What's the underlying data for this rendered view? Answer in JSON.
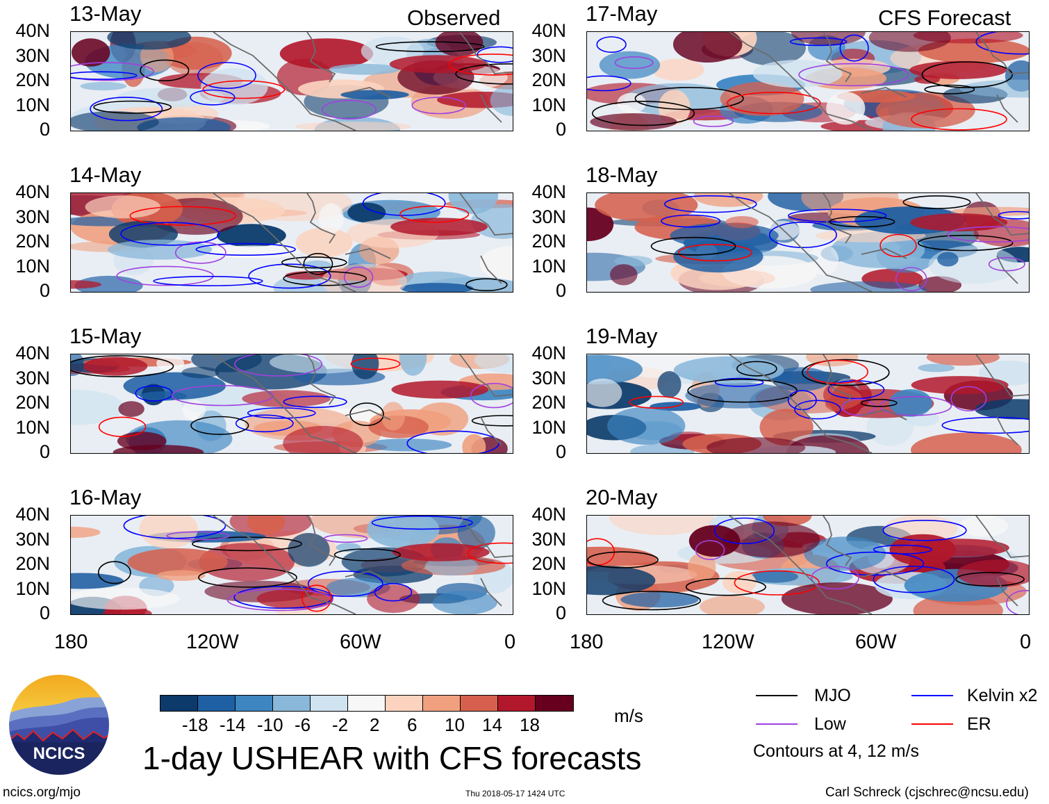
{
  "panels_left": [
    {
      "date": "13-May",
      "label": "Observed"
    },
    {
      "date": "14-May",
      "label": ""
    },
    {
      "date": "15-May",
      "label": ""
    },
    {
      "date": "16-May",
      "label": ""
    }
  ],
  "panels_right": [
    {
      "date": "17-May",
      "label": "CFS Forecast"
    },
    {
      "date": "18-May",
      "label": ""
    },
    {
      "date": "19-May",
      "label": ""
    },
    {
      "date": "20-May",
      "label": ""
    }
  ],
  "y_ticks": [
    "40N",
    "30N",
    "20N",
    "10N",
    "0"
  ],
  "x_ticks": [
    "180",
    "120W",
    "60W",
    "0"
  ],
  "colorbar": {
    "ticks": [
      "-18",
      "-14",
      "-10",
      "-6",
      "-2",
      "2",
      "6",
      "10",
      "14",
      "18"
    ],
    "colors": [
      "#0b3a6b",
      "#1f5fa3",
      "#3d86c2",
      "#8ab8da",
      "#cfe3f0",
      "#f7f7f7",
      "#fcd3bf",
      "#f0a07f",
      "#d6604d",
      "#b2182b",
      "#67001f"
    ],
    "units": "m/s"
  },
  "legend": {
    "items": [
      {
        "label": "MJO",
        "color": "#000000"
      },
      {
        "label": "Kelvin x2",
        "color": "#0000ff"
      },
      {
        "label": "Low",
        "color": "#a040e0"
      },
      {
        "label": "ER",
        "color": "#ff0000"
      }
    ],
    "note": "Contours at 4, 12 m/s"
  },
  "title": "1-day USHEAR with CFS forecasts",
  "logo_text": "NCICS",
  "footer": {
    "url": "ncics.org/mjo",
    "timestamp": "Thu 2018-05-17 1424 UTC",
    "author": "Carl Schreck (cjschrec@ncsu.edu)"
  }
}
